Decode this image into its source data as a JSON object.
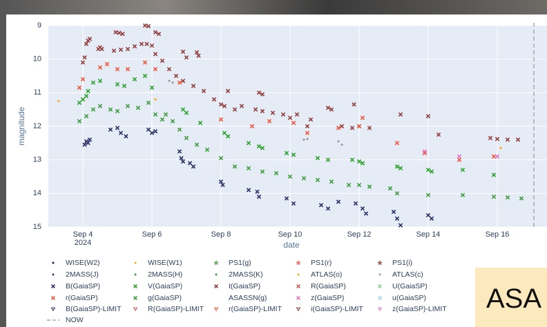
{
  "chart_data": {
    "type": "scatter",
    "x_label": "date",
    "y_label": "magnitude",
    "x_year_label": "2024",
    "xlim": [
      3,
      17.44
    ],
    "ylim": [
      15,
      9
    ],
    "y_reversed": true,
    "xticks": [
      {
        "value": 4,
        "label": "Sep 4"
      },
      {
        "value": 6,
        "label": "Sep 6"
      },
      {
        "value": 8,
        "label": "Sep 8"
      },
      {
        "value": 10,
        "label": "Sep 10"
      },
      {
        "value": 12,
        "label": "Sep 12"
      },
      {
        "value": 14,
        "label": "Sep 14"
      },
      {
        "value": 16,
        "label": "Sep 16"
      }
    ],
    "yticks": [
      9,
      10,
      11,
      12,
      13,
      14,
      15
    ],
    "grid": true,
    "plot_background": "#e5ecf6",
    "now_line": {
      "name": "NOW",
      "x": 17.06,
      "color": "#999999"
    },
    "series": [
      {
        "name": "WISE(W2)",
        "color": "#2b2f63",
        "marker": "square",
        "x": [],
        "values": []
      },
      {
        "name": "WISE(W1)",
        "color": "#f5a623",
        "marker": "dot",
        "x": [
          3.3,
          6.1,
          16.1
        ],
        "values": [
          11.25,
          11.2,
          12.65
        ]
      },
      {
        "name": "PS1(g)",
        "color": "#3d9a3d",
        "marker": "star",
        "x": [],
        "values": []
      },
      {
        "name": "PS1(r)",
        "color": "#e05a4f",
        "marker": "star",
        "x": [],
        "values": []
      },
      {
        "name": "PS1(i)",
        "color": "#8b3a3a",
        "marker": "star",
        "x": [],
        "values": []
      },
      {
        "name": "2MASS(J)",
        "color": "#2b2f63",
        "marker": "dot",
        "x": [],
        "values": []
      },
      {
        "name": "2MASS(H)",
        "color": "#3d9a3d",
        "marker": "dot",
        "x": [],
        "values": []
      },
      {
        "name": "2MASS(K)",
        "color": "#3d9a3d",
        "marker": "dot",
        "x": [],
        "values": []
      },
      {
        "name": "ATLAS(o)",
        "color": "#f5a623",
        "marker": "dot",
        "x": [],
        "values": []
      },
      {
        "name": "ATLAS(c)",
        "color": "#999999",
        "marker": "dot",
        "x": [
          6.5,
          6.6,
          10.4,
          10.5,
          11.4,
          11.5
        ],
        "values": [
          10.65,
          10.7,
          12.4,
          12.38,
          12.45,
          12.55
        ]
      },
      {
        "name": "B(GaiaSP)",
        "color": "#2b2f63",
        "marker": "x",
        "x": [
          4.05,
          4.1,
          4.15,
          4.2,
          4.8,
          5.0,
          5.1,
          5.25,
          5.9,
          6.0,
          6.1,
          6.8,
          6.85,
          6.9,
          7.1,
          7.2,
          8.0,
          8.05,
          8.8,
          9.05,
          9.1,
          9.9,
          10.1,
          10.9,
          11.1,
          11.4,
          11.9,
          12.1,
          12.2,
          13.0,
          13.1,
          13.2,
          14.0,
          14.1
        ],
        "values": [
          12.55,
          12.45,
          12.5,
          12.4,
          12.1,
          12.05,
          12.2,
          12.3,
          12.1,
          12.2,
          12.15,
          12.75,
          12.95,
          13.05,
          13.1,
          13.2,
          13.65,
          13.75,
          13.9,
          13.95,
          14.1,
          14.15,
          14.3,
          14.35,
          14.45,
          14.25,
          14.3,
          14.45,
          14.6,
          14.55,
          14.75,
          14.95,
          14.65,
          14.75
        ]
      },
      {
        "name": "V(GaiaSP)",
        "color": "#2ca02c",
        "marker": "x",
        "x": [
          3.9,
          4.0,
          4.1,
          4.15,
          4.3,
          4.5,
          5.0,
          5.2,
          5.5,
          5.8,
          6.0,
          6.9,
          7.0,
          7.4,
          8.1,
          8.2,
          8.8,
          9.1,
          9.2,
          9.9,
          10.1,
          10.8,
          11.1,
          11.8,
          12.0,
          12.1,
          13.1,
          13.2,
          14.0,
          14.1,
          15.0,
          15.9
        ],
        "values": [
          11.3,
          11.2,
          11.1,
          10.95,
          10.7,
          10.65,
          10.75,
          10.8,
          10.6,
          10.5,
          10.85,
          11.5,
          11.6,
          11.9,
          12.2,
          12.3,
          12.5,
          12.6,
          12.65,
          12.8,
          12.85,
          12.95,
          13.0,
          13.0,
          13.05,
          13.1,
          13.2,
          13.25,
          13.3,
          13.35,
          13.3,
          13.45
        ]
      },
      {
        "name": "I(GaiaSP)",
        "color": "#913b3b",
        "marker": "x",
        "x": [
          4.0,
          4.05,
          4.1,
          4.15,
          4.2,
          4.45,
          4.5,
          4.55,
          4.95,
          5.05,
          5.15,
          4.9,
          5.1,
          5.3,
          5.5,
          5.7,
          5.85,
          6.0,
          5.8,
          5.9,
          6.1,
          6.2,
          6.1,
          6.3,
          6.5,
          6.7,
          6.9,
          6.9,
          7.0,
          7.2,
          7.3,
          7.35,
          7.5,
          7.8,
          8.0,
          8.1,
          8.2,
          8.4,
          8.6,
          9.0,
          9.2,
          9.5,
          9.8,
          9.1,
          9.2,
          10.0,
          10.2,
          10.5,
          10.6,
          11.1,
          11.2,
          11.5,
          11.8,
          12.0,
          12.3,
          11.85,
          13.2,
          14.0,
          14.3,
          15.8,
          16.0,
          16.3,
          16.6
        ],
        "values": [
          10.1,
          9.95,
          9.55,
          9.45,
          9.4,
          9.7,
          9.65,
          9.7,
          9.2,
          9.22,
          9.25,
          9.75,
          9.72,
          9.7,
          9.62,
          9.55,
          9.55,
          9.6,
          9.0,
          9.02,
          9.2,
          9.25,
          9.85,
          10.05,
          10.3,
          10.5,
          10.65,
          9.78,
          9.95,
          10.8,
          9.8,
          9.9,
          10.95,
          11.2,
          11.35,
          11.4,
          10.95,
          11.5,
          11.4,
          11.5,
          11.55,
          11.6,
          11.65,
          11.0,
          11.05,
          11.75,
          11.65,
          12.0,
          11.8,
          11.45,
          11.5,
          12.0,
          12.05,
          12.0,
          12.05,
          11.35,
          11.65,
          11.7,
          12.25,
          12.35,
          12.38,
          12.4,
          12.4
        ]
      },
      {
        "name": "R(GaiaSP)",
        "color": "#c95c52",
        "marker": "x",
        "x": [],
        "values": []
      },
      {
        "name": "U(GaiaSP)",
        "color": "#8fd19e",
        "marker": "x",
        "x": [],
        "values": []
      },
      {
        "name": "r(GaiaSP)",
        "color": "#ef553b",
        "marker": "x",
        "x": [
          3.9,
          4.0,
          4.5,
          4.7,
          5.0,
          5.3,
          5.8,
          6.1,
          6.8,
          8.0,
          8.9,
          9.4,
          10.1,
          10.5,
          11.4,
          12.1,
          12.0,
          13.1,
          13.9,
          14.9,
          15.9
        ],
        "values": [
          10.85,
          10.6,
          10.25,
          10.15,
          10.3,
          10.3,
          10.1,
          10.3,
          10.7,
          11.8,
          12.0,
          11.85,
          11.9,
          12.2,
          12.05,
          11.75,
          12.0,
          12.5,
          12.8,
          13.0,
          12.9
        ]
      },
      {
        "name": "g(GaiaSP)",
        "color": "#3d9a3d",
        "marker": "x",
        "x": [
          3.9,
          4.1,
          4.3,
          4.5,
          4.8,
          5.0,
          5.3,
          5.6,
          5.9,
          6.1,
          6.3,
          6.4,
          6.6,
          6.8,
          7.0,
          7.3,
          7.6,
          8.0,
          8.4,
          8.8,
          9.2,
          9.6,
          10.0,
          10.4,
          10.8,
          11.2,
          11.7,
          12.0,
          12.3,
          12.9,
          13.1,
          14.0,
          15.0,
          15.9,
          16.3,
          16.7
        ],
        "values": [
          11.85,
          11.7,
          11.5,
          11.4,
          11.5,
          11.55,
          11.4,
          11.45,
          11.3,
          11.65,
          11.8,
          11.65,
          11.85,
          12.1,
          12.35,
          12.55,
          12.7,
          12.95,
          13.2,
          13.25,
          13.35,
          13.4,
          13.5,
          13.55,
          13.6,
          13.65,
          13.75,
          13.75,
          13.8,
          13.85,
          14.0,
          14.05,
          14.05,
          14.1,
          14.12,
          14.15
        ]
      },
      {
        "name": "ASASSN(g)",
        "color": "#999999",
        "marker": "none",
        "x": [],
        "values": []
      },
      {
        "name": "z(GaiaSP)",
        "color": "#e377c2",
        "marker": "x",
        "x": [
          13.9,
          14.9,
          16.0
        ],
        "values": [
          12.75,
          12.9,
          12.9
        ]
      },
      {
        "name": "u(GaiaSP)",
        "color": "#9edae5",
        "marker": "x",
        "x": [],
        "values": []
      },
      {
        "name": "B(GaiaSP)-LIMIT",
        "color": "#2b2f63",
        "marker": "triangle-down",
        "x": [],
        "values": []
      },
      {
        "name": "R(GaiaSP)-LIMIT",
        "color": "#c95c52",
        "marker": "triangle-down",
        "x": [],
        "values": []
      },
      {
        "name": "r(GaiaSP)-LIMIT",
        "color": "#ef553b",
        "marker": "triangle-down",
        "x": [],
        "values": []
      },
      {
        "name": "i(GaiaSP)-LIMIT",
        "color": "#8b3a3a",
        "marker": "triangle-down",
        "x": [],
        "values": []
      },
      {
        "name": "z(GaiaSP)-LIMIT",
        "color": "#e377c2",
        "marker": "triangle-down",
        "x": [],
        "values": []
      }
    ]
  },
  "overlay": {
    "text": "ASA"
  }
}
